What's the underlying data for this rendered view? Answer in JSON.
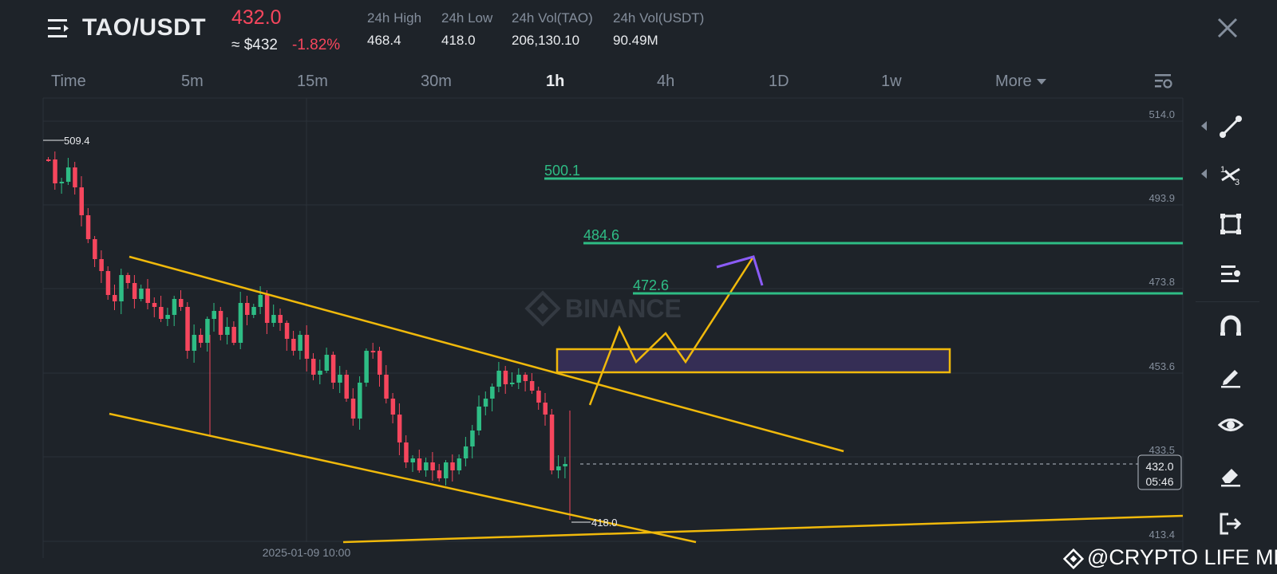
{
  "header": {
    "pair": "TAO/USDT",
    "last_price": "432.0",
    "usd_price": "≈ $432",
    "change": "-1.82%",
    "stats": [
      {
        "label": "24h High",
        "value": "468.4"
      },
      {
        "label": "24h Low",
        "value": "418.0"
      },
      {
        "label": "24h Vol(TAO)",
        "value": "206,130.10"
      },
      {
        "label": "24h Vol(USDT)",
        "value": "90.49M"
      }
    ]
  },
  "tabs": {
    "items": [
      "Time",
      "5m",
      "15m",
      "30m",
      "1h",
      "4h",
      "1D",
      "1w",
      "More"
    ],
    "active": "1h"
  },
  "chart": {
    "watermark": "BINANCE",
    "y_labels": [
      "514.0",
      "493.9",
      "473.8",
      "453.6",
      "433.5",
      "413.4"
    ],
    "x_label": "2025-01-09 10:00",
    "high_marker": "509.4",
    "low_marker": "418.0",
    "current_price": "432.0",
    "countdown": "05:46",
    "levels": [
      "500.1",
      "484.6",
      "472.6"
    ],
    "colors": {
      "up": "#2ebd85",
      "down": "#f6465d",
      "trendline": "#f0b90b",
      "zone_fill": "#352e55",
      "arrow": "#8b5cf6"
    }
  },
  "toolbar": {
    "tools": [
      "trend-line-icon",
      "fibonacci-icon",
      "rectangle-icon",
      "indicator-icon",
      "magnet-icon",
      "brush-icon",
      "eye-icon",
      "eraser-icon",
      "exit-icon"
    ]
  },
  "overlay": {
    "credit": "@CRYPTO LIFE MNE"
  }
}
